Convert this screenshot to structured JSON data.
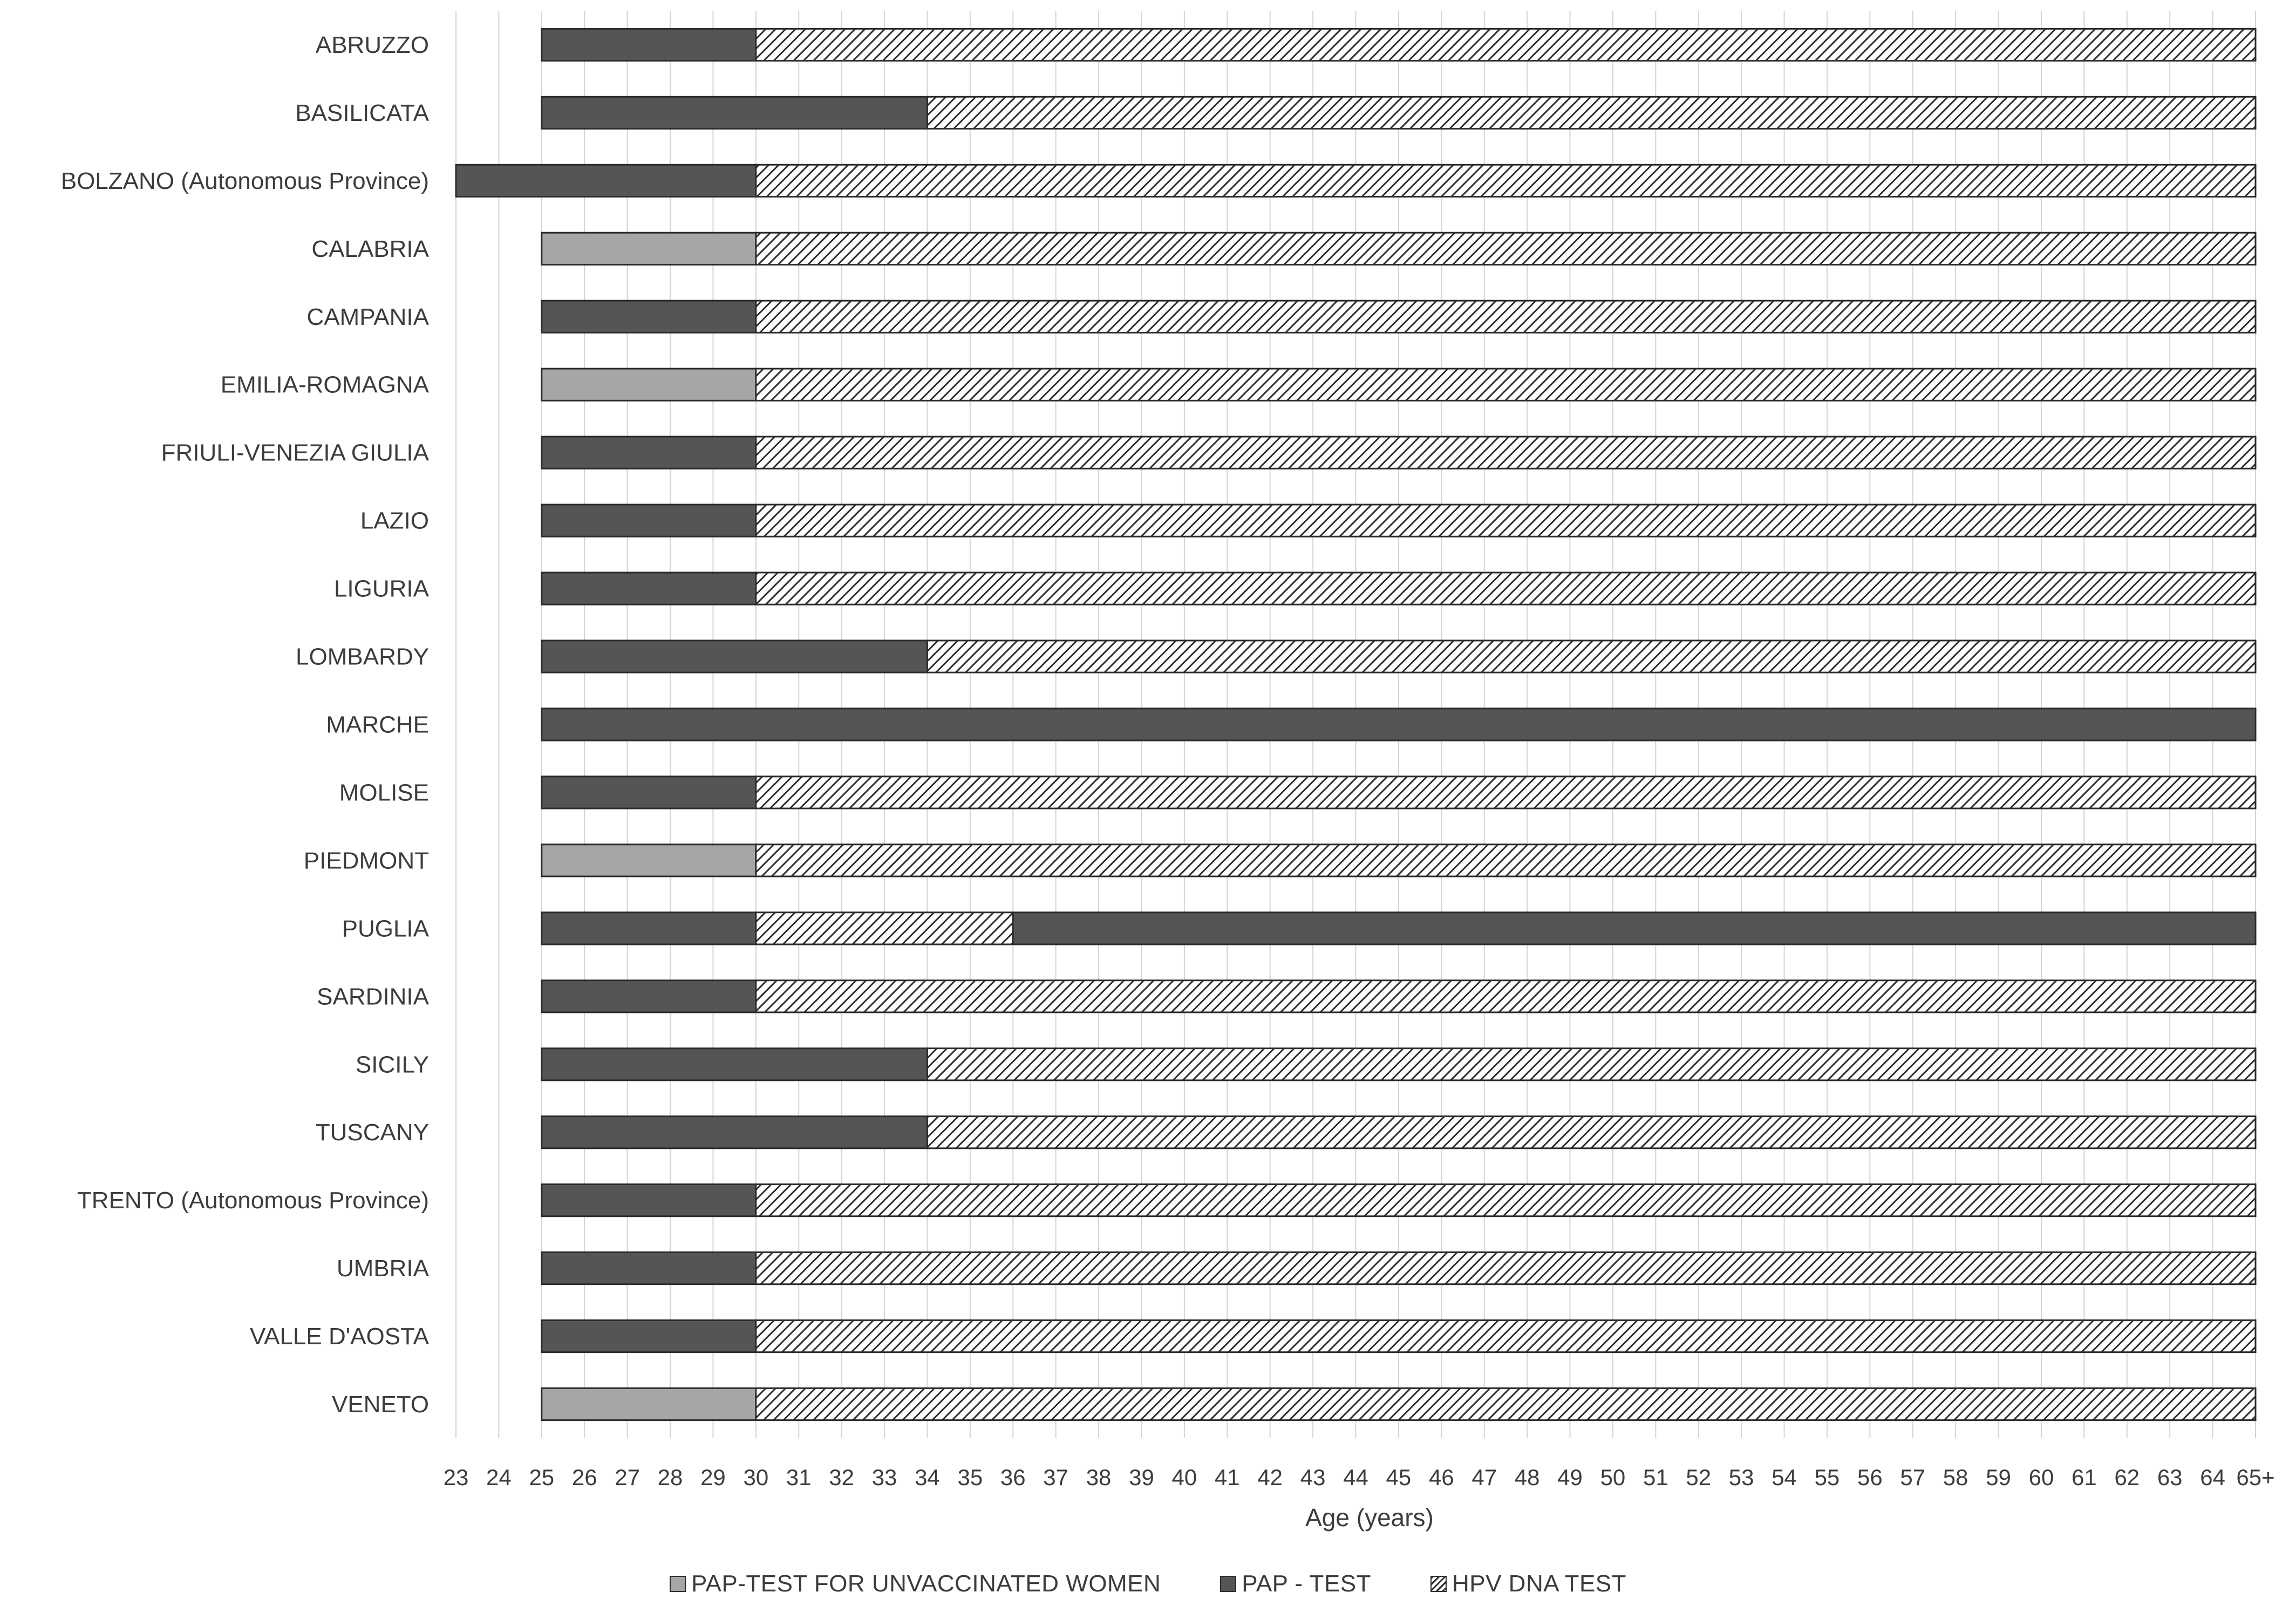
{
  "chart_data": {
    "type": "bar",
    "orientation": "horizontal-stacked-range",
    "xlabel": "Age (years)",
    "x_ticks": [
      "23",
      "24",
      "25",
      "26",
      "27",
      "28",
      "29",
      "30",
      "31",
      "32",
      "33",
      "34",
      "35",
      "36",
      "37",
      "38",
      "39",
      "40",
      "41",
      "42",
      "43",
      "44",
      "45",
      "46",
      "47",
      "48",
      "49",
      "50",
      "51",
      "52",
      "53",
      "54",
      "55",
      "56",
      "57",
      "58",
      "59",
      "60",
      "61",
      "62",
      "63",
      "64",
      "65+"
    ],
    "xlim": [
      23,
      65
    ],
    "grid": "vertical",
    "legend_position": "bottom",
    "legend": [
      {
        "key": "pap_unvacc",
        "label": "PAP-TEST FOR UNVACCINATED WOMEN",
        "fill": "#a6a6a6"
      },
      {
        "key": "pap",
        "label": "PAP - TEST",
        "fill": "#555555"
      },
      {
        "key": "hpv",
        "label": "HPV DNA TEST",
        "fill": "hatched"
      }
    ],
    "rows": [
      {
        "region": "ABRUZZO",
        "segments": [
          {
            "test": "pap",
            "from": 25,
            "to": 30
          },
          {
            "test": "hpv",
            "from": 30,
            "to": 65
          }
        ]
      },
      {
        "region": "BASILICATA",
        "segments": [
          {
            "test": "pap",
            "from": 25,
            "to": 34
          },
          {
            "test": "hpv",
            "from": 34,
            "to": 65
          }
        ]
      },
      {
        "region": "BOLZANO (Autonomous Province)",
        "segments": [
          {
            "test": "pap",
            "from": 23,
            "to": 30
          },
          {
            "test": "hpv",
            "from": 30,
            "to": 65
          }
        ]
      },
      {
        "region": "CALABRIA",
        "segments": [
          {
            "test": "pap_unvacc",
            "from": 25,
            "to": 30
          },
          {
            "test": "hpv",
            "from": 30,
            "to": 65
          }
        ]
      },
      {
        "region": "CAMPANIA",
        "segments": [
          {
            "test": "pap",
            "from": 25,
            "to": 30
          },
          {
            "test": "hpv",
            "from": 30,
            "to": 65
          }
        ]
      },
      {
        "region": "EMILIA-ROMAGNA",
        "segments": [
          {
            "test": "pap_unvacc",
            "from": 25,
            "to": 30
          },
          {
            "test": "hpv",
            "from": 30,
            "to": 65
          }
        ]
      },
      {
        "region": "FRIULI-VENEZIA GIULIA",
        "segments": [
          {
            "test": "pap",
            "from": 25,
            "to": 30
          },
          {
            "test": "hpv",
            "from": 30,
            "to": 65
          }
        ]
      },
      {
        "region": "LAZIO",
        "segments": [
          {
            "test": "pap",
            "from": 25,
            "to": 30
          },
          {
            "test": "hpv",
            "from": 30,
            "to": 65
          }
        ]
      },
      {
        "region": "LIGURIA",
        "segments": [
          {
            "test": "pap",
            "from": 25,
            "to": 30
          },
          {
            "test": "hpv",
            "from": 30,
            "to": 65
          }
        ]
      },
      {
        "region": "LOMBARDY",
        "segments": [
          {
            "test": "pap",
            "from": 25,
            "to": 34
          },
          {
            "test": "hpv",
            "from": 34,
            "to": 65
          }
        ]
      },
      {
        "region": "MARCHE",
        "segments": [
          {
            "test": "pap",
            "from": 25,
            "to": 65
          }
        ]
      },
      {
        "region": "MOLISE",
        "segments": [
          {
            "test": "pap",
            "from": 25,
            "to": 30
          },
          {
            "test": "hpv",
            "from": 30,
            "to": 65
          }
        ]
      },
      {
        "region": "PIEDMONT",
        "segments": [
          {
            "test": "pap_unvacc",
            "from": 25,
            "to": 30
          },
          {
            "test": "hpv",
            "from": 30,
            "to": 65
          }
        ]
      },
      {
        "region": "PUGLIA",
        "segments": [
          {
            "test": "pap",
            "from": 25,
            "to": 30
          },
          {
            "test": "hpv",
            "from": 30,
            "to": 36
          },
          {
            "test": "pap",
            "from": 36,
            "to": 65
          }
        ]
      },
      {
        "region": "SARDINIA",
        "segments": [
          {
            "test": "pap",
            "from": 25,
            "to": 30
          },
          {
            "test": "hpv",
            "from": 30,
            "to": 65
          }
        ]
      },
      {
        "region": "SICILY",
        "segments": [
          {
            "test": "pap",
            "from": 25,
            "to": 34
          },
          {
            "test": "hpv",
            "from": 34,
            "to": 65
          }
        ]
      },
      {
        "region": "TUSCANY",
        "segments": [
          {
            "test": "pap",
            "from": 25,
            "to": 34
          },
          {
            "test": "hpv",
            "from": 34,
            "to": 65
          }
        ]
      },
      {
        "region": "TRENTO (Autonomous Province)",
        "segments": [
          {
            "test": "pap",
            "from": 25,
            "to": 30
          },
          {
            "test": "hpv",
            "from": 30,
            "to": 65
          }
        ]
      },
      {
        "region": "UMBRIA",
        "segments": [
          {
            "test": "pap",
            "from": 25,
            "to": 30
          },
          {
            "test": "hpv",
            "from": 30,
            "to": 65
          }
        ]
      },
      {
        "region": "VALLE D'AOSTA",
        "segments": [
          {
            "test": "pap",
            "from": 25,
            "to": 30
          },
          {
            "test": "hpv",
            "from": 30,
            "to": 65
          }
        ]
      },
      {
        "region": "VENETO",
        "segments": [
          {
            "test": "pap_unvacc",
            "from": 25,
            "to": 30
          },
          {
            "test": "hpv",
            "from": 30,
            "to": 65
          }
        ]
      }
    ]
  }
}
